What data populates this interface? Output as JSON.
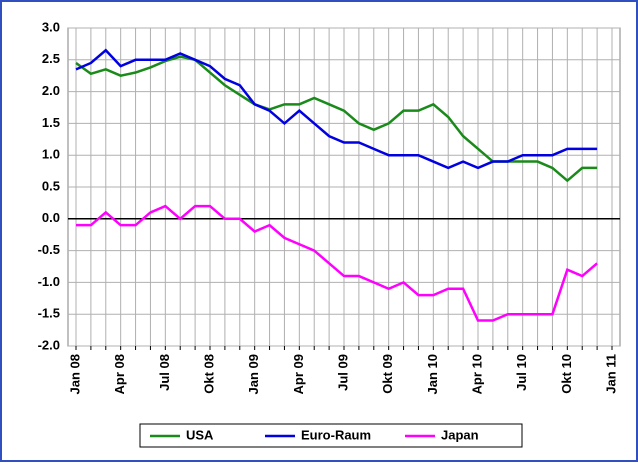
{
  "chart_data": {
    "type": "line",
    "categories": [
      "Jan 08",
      null,
      null,
      "Apr 08",
      null,
      null,
      "Jul 08",
      null,
      null,
      "Okt 08",
      null,
      null,
      "Jan 09",
      null,
      null,
      "Apr 09",
      null,
      null,
      "Jul 09",
      null,
      null,
      "Okt 09",
      null,
      null,
      "Jan 10",
      null,
      null,
      "Apr 10",
      null,
      null,
      "Jul 10",
      null,
      null,
      "Okt 10",
      null,
      null,
      "Jan 11"
    ],
    "series": [
      {
        "name": "USA",
        "color": "#1a8a1a",
        "values": [
          2.45,
          2.28,
          2.35,
          2.25,
          2.3,
          2.38,
          2.48,
          2.55,
          2.5,
          2.3,
          2.1,
          1.95,
          1.8,
          1.72,
          1.8,
          1.8,
          1.9,
          1.8,
          1.7,
          1.5,
          1.4,
          1.5,
          1.7,
          1.7,
          1.8,
          1.6,
          1.3,
          1.1,
          0.9,
          0.9,
          0.9,
          0.9,
          0.8,
          0.6,
          0.8,
          0.8,
          null
        ]
      },
      {
        "name": "Euro-Raum",
        "color": "#0000e0",
        "values": [
          2.35,
          2.45,
          2.65,
          2.4,
          2.5,
          2.5,
          2.5,
          2.6,
          2.5,
          2.4,
          2.2,
          2.1,
          1.8,
          1.7,
          1.5,
          1.7,
          1.5,
          1.3,
          1.2,
          1.2,
          1.1,
          1.0,
          1.0,
          1.0,
          0.9,
          0.8,
          0.9,
          0.8,
          0.9,
          0.9,
          1.0,
          1.0,
          1.0,
          1.1,
          1.1,
          1.1,
          null
        ]
      },
      {
        "name": "Japan",
        "color": "#ff00ff",
        "values": [
          -0.1,
          -0.1,
          0.1,
          -0.1,
          -0.1,
          0.1,
          0.2,
          0.0,
          0.2,
          0.2,
          0.0,
          0.0,
          -0.2,
          -0.1,
          -0.3,
          -0.4,
          -0.5,
          -0.7,
          -0.9,
          -0.9,
          -1.0,
          -1.1,
          -1.0,
          -1.2,
          -1.2,
          -1.1,
          -1.1,
          -1.6,
          -1.6,
          -1.5,
          -1.5,
          -1.5,
          -1.5,
          -0.8,
          -0.9,
          -0.7,
          null
        ]
      }
    ],
    "ylim": [
      -2,
      3
    ],
    "yticks": [
      {
        "value": 3,
        "label": "3.0"
      },
      2.5,
      {
        "value": 2,
        "label": "2.0"
      },
      1.5,
      {
        "value": 1,
        "label": "1.0"
      },
      0.5,
      {
        "value": 0,
        "label": "0.0"
      },
      -0.5,
      {
        "value": -1,
        "label": "-1.0"
      },
      -1.5,
      {
        "value": -2,
        "label": "-2.0"
      }
    ],
    "grid": true,
    "legend": "bottom"
  }
}
